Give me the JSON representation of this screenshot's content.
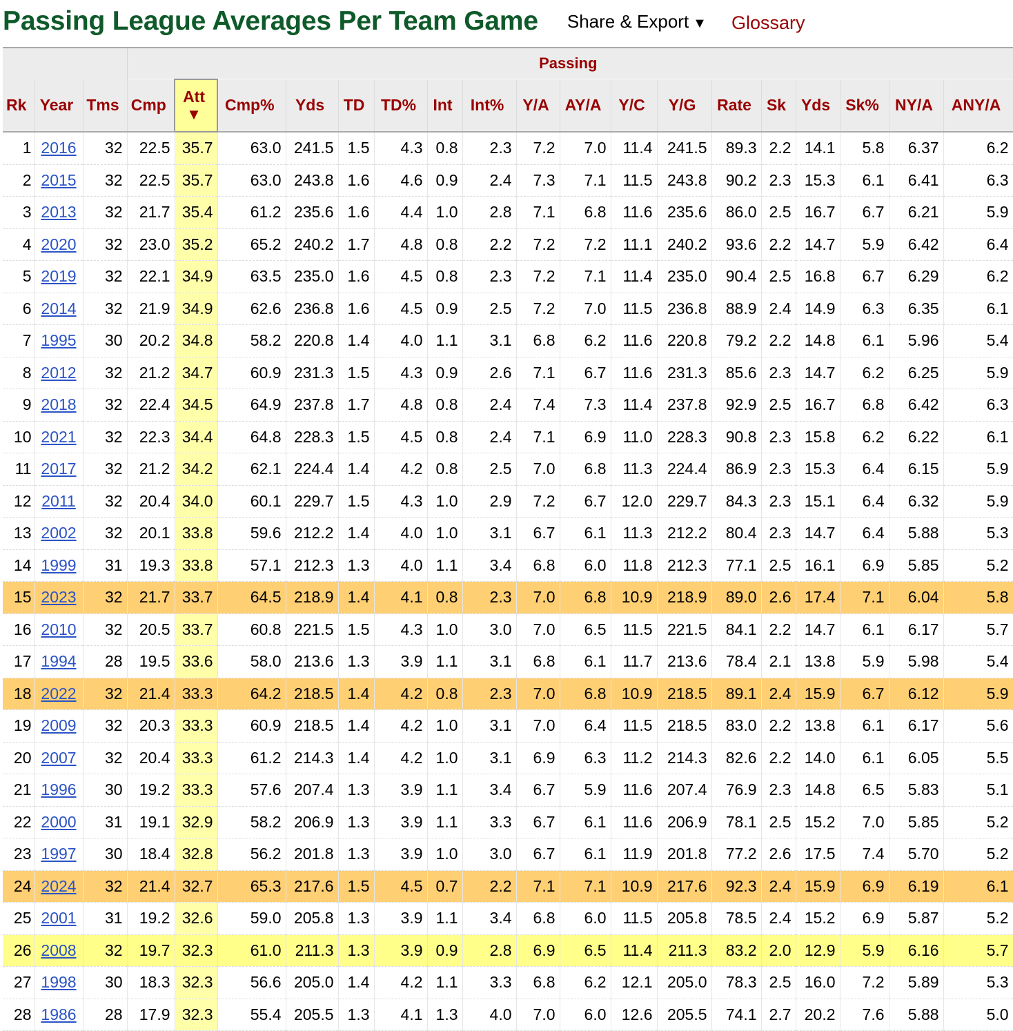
{
  "header": {
    "title": "Passing League Averages Per Team Game",
    "share_export": "Share & Export",
    "share_caret": "▼",
    "glossary": "Glossary"
  },
  "table": {
    "group_label": "Passing",
    "sort_arrow": "▼",
    "columns": [
      "Rk",
      "Year",
      "Tms",
      "Cmp",
      "Att",
      "Cmp%",
      "Yds",
      "TD",
      "TD%",
      "Int",
      "Int%",
      "Y/A",
      "AY/A",
      "Y/C",
      "Y/G",
      "Rate",
      "Sk",
      "Yds",
      "Sk%",
      "NY/A",
      "ANY/A"
    ],
    "highlight_colors": {
      "orange": "#ffcf73",
      "yellow": "#ffff8a",
      "sorted_column": "#ffffaa"
    },
    "rows": [
      {
        "cells": [
          "1",
          "2016",
          "32",
          "22.5",
          "35.7",
          "63.0",
          "241.5",
          "1.5",
          "4.3",
          "0.8",
          "2.3",
          "7.2",
          "7.0",
          "11.4",
          "241.5",
          "89.3",
          "2.2",
          "14.1",
          "5.8",
          "6.37",
          "6.2"
        ]
      },
      {
        "cells": [
          "2",
          "2015",
          "32",
          "22.5",
          "35.7",
          "63.0",
          "243.8",
          "1.6",
          "4.6",
          "0.9",
          "2.4",
          "7.3",
          "7.1",
          "11.5",
          "243.8",
          "90.2",
          "2.3",
          "15.3",
          "6.1",
          "6.41",
          "6.3"
        ]
      },
      {
        "cells": [
          "3",
          "2013",
          "32",
          "21.7",
          "35.4",
          "61.2",
          "235.6",
          "1.6",
          "4.4",
          "1.0",
          "2.8",
          "7.1",
          "6.8",
          "11.6",
          "235.6",
          "86.0",
          "2.5",
          "16.7",
          "6.7",
          "6.21",
          "5.9"
        ]
      },
      {
        "cells": [
          "4",
          "2020",
          "32",
          "23.0",
          "35.2",
          "65.2",
          "240.2",
          "1.7",
          "4.8",
          "0.8",
          "2.2",
          "7.2",
          "7.2",
          "11.1",
          "240.2",
          "93.6",
          "2.2",
          "14.7",
          "5.9",
          "6.42",
          "6.4"
        ]
      },
      {
        "cells": [
          "5",
          "2019",
          "32",
          "22.1",
          "34.9",
          "63.5",
          "235.0",
          "1.6",
          "4.5",
          "0.8",
          "2.3",
          "7.2",
          "7.1",
          "11.4",
          "235.0",
          "90.4",
          "2.5",
          "16.8",
          "6.7",
          "6.29",
          "6.2"
        ]
      },
      {
        "cells": [
          "6",
          "2014",
          "32",
          "21.9",
          "34.9",
          "62.6",
          "236.8",
          "1.6",
          "4.5",
          "0.9",
          "2.5",
          "7.2",
          "7.0",
          "11.5",
          "236.8",
          "88.9",
          "2.4",
          "14.9",
          "6.3",
          "6.35",
          "6.1"
        ]
      },
      {
        "cells": [
          "7",
          "1995",
          "30",
          "20.2",
          "34.8",
          "58.2",
          "220.8",
          "1.4",
          "4.0",
          "1.1",
          "3.1",
          "6.8",
          "6.2",
          "11.6",
          "220.8",
          "79.2",
          "2.2",
          "14.8",
          "6.1",
          "5.96",
          "5.4"
        ]
      },
      {
        "cells": [
          "8",
          "2012",
          "32",
          "21.2",
          "34.7",
          "60.9",
          "231.3",
          "1.5",
          "4.3",
          "0.9",
          "2.6",
          "7.1",
          "6.7",
          "11.6",
          "231.3",
          "85.6",
          "2.3",
          "14.7",
          "6.2",
          "6.25",
          "5.9"
        ]
      },
      {
        "cells": [
          "9",
          "2018",
          "32",
          "22.4",
          "34.5",
          "64.9",
          "237.8",
          "1.7",
          "4.8",
          "0.8",
          "2.4",
          "7.4",
          "7.3",
          "11.4",
          "237.8",
          "92.9",
          "2.5",
          "16.7",
          "6.8",
          "6.42",
          "6.3"
        ]
      },
      {
        "cells": [
          "10",
          "2021",
          "32",
          "22.3",
          "34.4",
          "64.8",
          "228.3",
          "1.5",
          "4.5",
          "0.8",
          "2.4",
          "7.1",
          "6.9",
          "11.0",
          "228.3",
          "90.8",
          "2.3",
          "15.8",
          "6.2",
          "6.22",
          "6.1"
        ]
      },
      {
        "cells": [
          "11",
          "2017",
          "32",
          "21.2",
          "34.2",
          "62.1",
          "224.4",
          "1.4",
          "4.2",
          "0.8",
          "2.5",
          "7.0",
          "6.8",
          "11.3",
          "224.4",
          "86.9",
          "2.3",
          "15.3",
          "6.4",
          "6.15",
          "5.9"
        ]
      },
      {
        "cells": [
          "12",
          "2011",
          "32",
          "20.4",
          "34.0",
          "60.1",
          "229.7",
          "1.5",
          "4.3",
          "1.0",
          "2.9",
          "7.2",
          "6.7",
          "12.0",
          "229.7",
          "84.3",
          "2.3",
          "15.1",
          "6.4",
          "6.32",
          "5.9"
        ]
      },
      {
        "cells": [
          "13",
          "2002",
          "32",
          "20.1",
          "33.8",
          "59.6",
          "212.2",
          "1.4",
          "4.0",
          "1.0",
          "3.1",
          "6.7",
          "6.1",
          "11.3",
          "212.2",
          "80.4",
          "2.3",
          "14.7",
          "6.4",
          "5.88",
          "5.3"
        ]
      },
      {
        "cells": [
          "14",
          "1999",
          "31",
          "19.3",
          "33.8",
          "57.1",
          "212.3",
          "1.3",
          "4.0",
          "1.1",
          "3.4",
          "6.8",
          "6.0",
          "11.8",
          "212.3",
          "77.1",
          "2.5",
          "16.1",
          "6.9",
          "5.85",
          "5.2"
        ]
      },
      {
        "cells": [
          "15",
          "2023",
          "32",
          "21.7",
          "33.7",
          "64.5",
          "218.9",
          "1.4",
          "4.1",
          "0.8",
          "2.3",
          "7.0",
          "6.8",
          "10.9",
          "218.9",
          "89.0",
          "2.6",
          "17.4",
          "7.1",
          "6.04",
          "5.8"
        ],
        "highlight": "orange"
      },
      {
        "cells": [
          "16",
          "2010",
          "32",
          "20.5",
          "33.7",
          "60.8",
          "221.5",
          "1.5",
          "4.3",
          "1.0",
          "3.0",
          "7.0",
          "6.5",
          "11.5",
          "221.5",
          "84.1",
          "2.2",
          "14.7",
          "6.1",
          "6.17",
          "5.7"
        ]
      },
      {
        "cells": [
          "17",
          "1994",
          "28",
          "19.5",
          "33.6",
          "58.0",
          "213.6",
          "1.3",
          "3.9",
          "1.1",
          "3.1",
          "6.8",
          "6.1",
          "11.7",
          "213.6",
          "78.4",
          "2.1",
          "13.8",
          "5.9",
          "5.98",
          "5.4"
        ]
      },
      {
        "cells": [
          "18",
          "2022",
          "32",
          "21.4",
          "33.3",
          "64.2",
          "218.5",
          "1.4",
          "4.2",
          "0.8",
          "2.3",
          "7.0",
          "6.8",
          "10.9",
          "218.5",
          "89.1",
          "2.4",
          "15.9",
          "6.7",
          "6.12",
          "5.9"
        ],
        "highlight": "orange"
      },
      {
        "cells": [
          "19",
          "2009",
          "32",
          "20.3",
          "33.3",
          "60.9",
          "218.5",
          "1.4",
          "4.2",
          "1.0",
          "3.1",
          "7.0",
          "6.4",
          "11.5",
          "218.5",
          "83.0",
          "2.2",
          "13.8",
          "6.1",
          "6.17",
          "5.6"
        ]
      },
      {
        "cells": [
          "20",
          "2007",
          "32",
          "20.4",
          "33.3",
          "61.2",
          "214.3",
          "1.4",
          "4.2",
          "1.0",
          "3.1",
          "6.9",
          "6.3",
          "11.2",
          "214.3",
          "82.6",
          "2.2",
          "14.0",
          "6.1",
          "6.05",
          "5.5"
        ]
      },
      {
        "cells": [
          "21",
          "1996",
          "30",
          "19.2",
          "33.3",
          "57.6",
          "207.4",
          "1.3",
          "3.9",
          "1.1",
          "3.4",
          "6.7",
          "5.9",
          "11.6",
          "207.4",
          "76.9",
          "2.3",
          "14.8",
          "6.5",
          "5.83",
          "5.1"
        ]
      },
      {
        "cells": [
          "22",
          "2000",
          "31",
          "19.1",
          "32.9",
          "58.2",
          "206.9",
          "1.3",
          "3.9",
          "1.1",
          "3.3",
          "6.7",
          "6.1",
          "11.6",
          "206.9",
          "78.1",
          "2.5",
          "15.2",
          "7.0",
          "5.85",
          "5.2"
        ]
      },
      {
        "cells": [
          "23",
          "1997",
          "30",
          "18.4",
          "32.8",
          "56.2",
          "201.8",
          "1.3",
          "3.9",
          "1.0",
          "3.0",
          "6.7",
          "6.1",
          "11.9",
          "201.8",
          "77.2",
          "2.6",
          "17.5",
          "7.4",
          "5.70",
          "5.2"
        ]
      },
      {
        "cells": [
          "24",
          "2024",
          "32",
          "21.4",
          "32.7",
          "65.3",
          "217.6",
          "1.5",
          "4.5",
          "0.7",
          "2.2",
          "7.1",
          "7.1",
          "10.9",
          "217.6",
          "92.3",
          "2.4",
          "15.9",
          "6.9",
          "6.19",
          "6.1"
        ],
        "highlight": "orange"
      },
      {
        "cells": [
          "25",
          "2001",
          "31",
          "19.2",
          "32.6",
          "59.0",
          "205.8",
          "1.3",
          "3.9",
          "1.1",
          "3.4",
          "6.8",
          "6.0",
          "11.5",
          "205.8",
          "78.5",
          "2.4",
          "15.2",
          "6.9",
          "5.87",
          "5.2"
        ]
      },
      {
        "cells": [
          "26",
          "2008",
          "32",
          "19.7",
          "32.3",
          "61.0",
          "211.3",
          "1.3",
          "3.9",
          "0.9",
          "2.8",
          "6.9",
          "6.5",
          "11.4",
          "211.3",
          "83.2",
          "2.0",
          "12.9",
          "5.9",
          "6.16",
          "5.7"
        ],
        "highlight": "yellow"
      },
      {
        "cells": [
          "27",
          "1998",
          "30",
          "18.3",
          "32.3",
          "56.6",
          "205.0",
          "1.4",
          "4.2",
          "1.1",
          "3.3",
          "6.8",
          "6.2",
          "12.1",
          "205.0",
          "78.3",
          "2.5",
          "16.0",
          "7.2",
          "5.89",
          "5.3"
        ]
      },
      {
        "cells": [
          "28",
          "1986",
          "28",
          "17.9",
          "32.3",
          "55.4",
          "205.5",
          "1.3",
          "4.1",
          "1.3",
          "4.0",
          "7.0",
          "6.0",
          "12.6",
          "205.5",
          "74.1",
          "2.7",
          "20.2",
          "7.6",
          "5.88",
          "5.0"
        ]
      }
    ]
  }
}
